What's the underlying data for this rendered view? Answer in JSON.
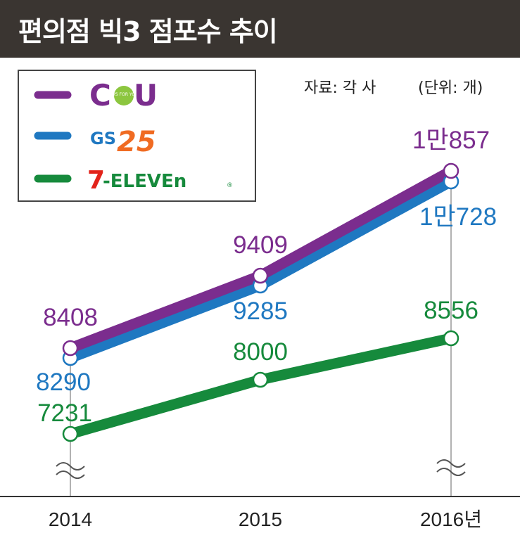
{
  "title": "편의점 빅3 점포수 추이",
  "source_note": "자료: 각 사",
  "unit_note": "(단위: 개)",
  "colors": {
    "header_bg": "#3a3531",
    "cu": "#7b2d8e",
    "gs25": "#1f78c1",
    "seven": "#168a3c"
  },
  "chart_data": {
    "type": "line",
    "categories": [
      "2014",
      "2015",
      "2016년"
    ],
    "series": [
      {
        "name": "CU",
        "key": "cu",
        "values": [
          8408,
          9409,
          10857
        ],
        "labels": [
          "8408",
          "9409",
          "1만857"
        ]
      },
      {
        "name": "GS25",
        "key": "gs25",
        "values": [
          8290,
          9285,
          10728
        ],
        "labels": [
          "8290",
          "9285",
          "1만728"
        ]
      },
      {
        "name": "7-ELEVEN",
        "key": "seven",
        "values": [
          7231,
          8000,
          8556
        ],
        "labels": [
          "7231",
          "8000",
          "8556"
        ]
      }
    ],
    "axis_break": true,
    "grid": false,
    "legend_position": "top-left"
  }
}
